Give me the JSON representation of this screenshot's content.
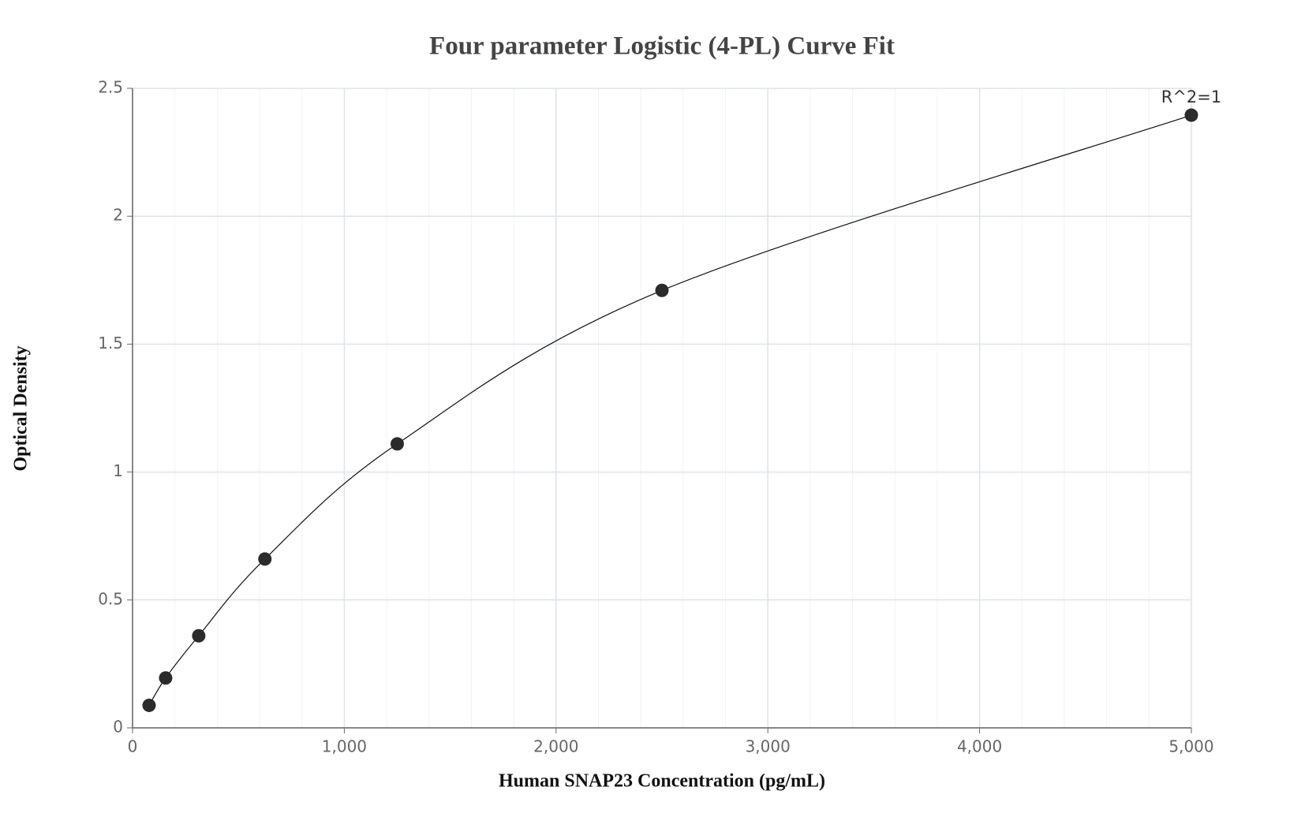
{
  "chart_data": {
    "type": "scatter",
    "title": "Four parameter Logistic (4-PL) Curve Fit",
    "x_label": "Human SNAP23 Concentration (pg/mL)",
    "y_label": "Optical Density",
    "annotation": "R^2=1",
    "series": [
      {
        "x": [
          78.125,
          156.25,
          312.5,
          625,
          1250,
          2500,
          5000
        ],
        "values": [
          0.088,
          0.195,
          0.36,
          0.66,
          1.11,
          1.71,
          2.395
        ],
        "color": "#2b2b2b",
        "line_color": "#111111"
      }
    ],
    "xlim": [
      0,
      5000
    ],
    "xticks": [
      0,
      {
        "value": 1000,
        "label": "1,000"
      },
      {
        "value": 2000,
        "label": "2,000"
      },
      {
        "value": 3000,
        "label": "3,000"
      },
      {
        "value": 4000,
        "label": "4,000"
      },
      {
        "value": 5000,
        "label": "5,000"
      }
    ],
    "xminorticks": [
      200,
      400,
      600,
      800,
      1200,
      1400,
      1600,
      1800,
      2200,
      2400,
      2600,
      2800,
      3200,
      3400,
      3600,
      3800,
      4200,
      4400,
      4600,
      4800
    ],
    "ylim": [
      0,
      2.5
    ],
    "yticks": [
      0,
      0.5,
      1,
      1.5,
      2,
      2.5
    ],
    "grid": true
  }
}
